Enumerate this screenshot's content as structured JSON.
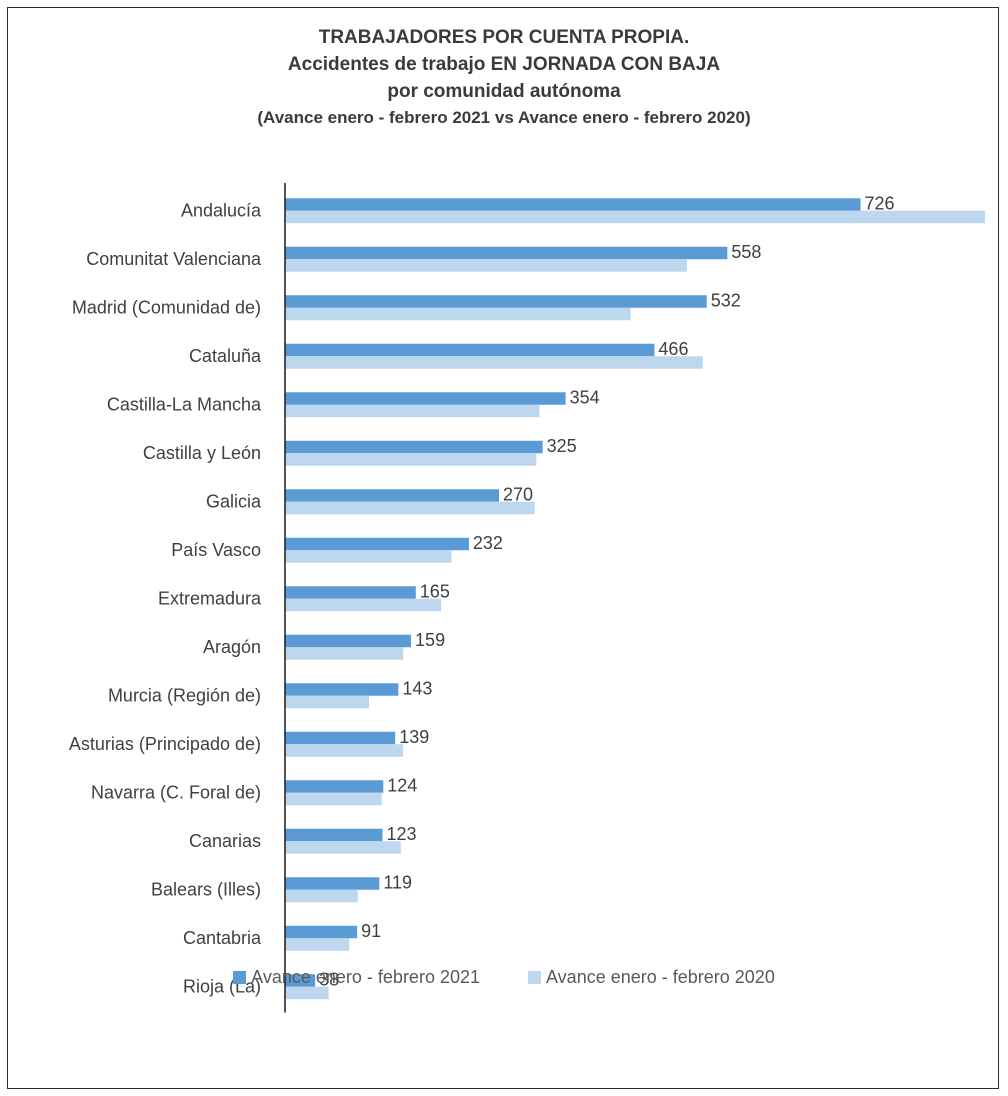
{
  "chart_data": {
    "type": "bar",
    "orientation": "horizontal",
    "title_lines": [
      "TRABAJADORES POR CUENTA PROPIA.",
      "Accidentes de trabajo EN JORNADA CON BAJA",
      "por comunidad autónoma"
    ],
    "subtitle": "(Avance enero - febrero 2021 vs Avance enero - febrero 2020)",
    "categories": [
      "Andalucía",
      "Comunitat Valenciana",
      "Madrid (Comunidad de)",
      "Cataluña",
      "Castilla-La Mancha",
      "Castilla y León",
      "Galicia",
      "País Vasco",
      "Extremadura",
      "Aragón",
      "Murcia (Región de)",
      "Asturias (Principado de)",
      "Navarra (C. Foral de)",
      "Canarias",
      "Balears (Illes)",
      "Cantabria",
      "Rioja (La)"
    ],
    "series": [
      {
        "name": "Avance enero - febrero 2021",
        "color": "#5b9bd5",
        "values": [
          726,
          558,
          532,
          466,
          354,
          325,
          270,
          232,
          165,
          159,
          143,
          139,
          124,
          123,
          119,
          91,
          38
        ],
        "labels_shown": true
      },
      {
        "name": "Avance enero - febrero 2020",
        "color": "#bdd7ee",
        "values": [
          883,
          507,
          436,
          527,
          321,
          317,
          315,
          210,
          197,
          149,
          106,
          149,
          122,
          146,
          92,
          81,
          55
        ],
        "labels_shown": false
      }
    ],
    "xlim": [
      0,
      883
    ],
    "grid": false,
    "legend_position": "bottom"
  }
}
